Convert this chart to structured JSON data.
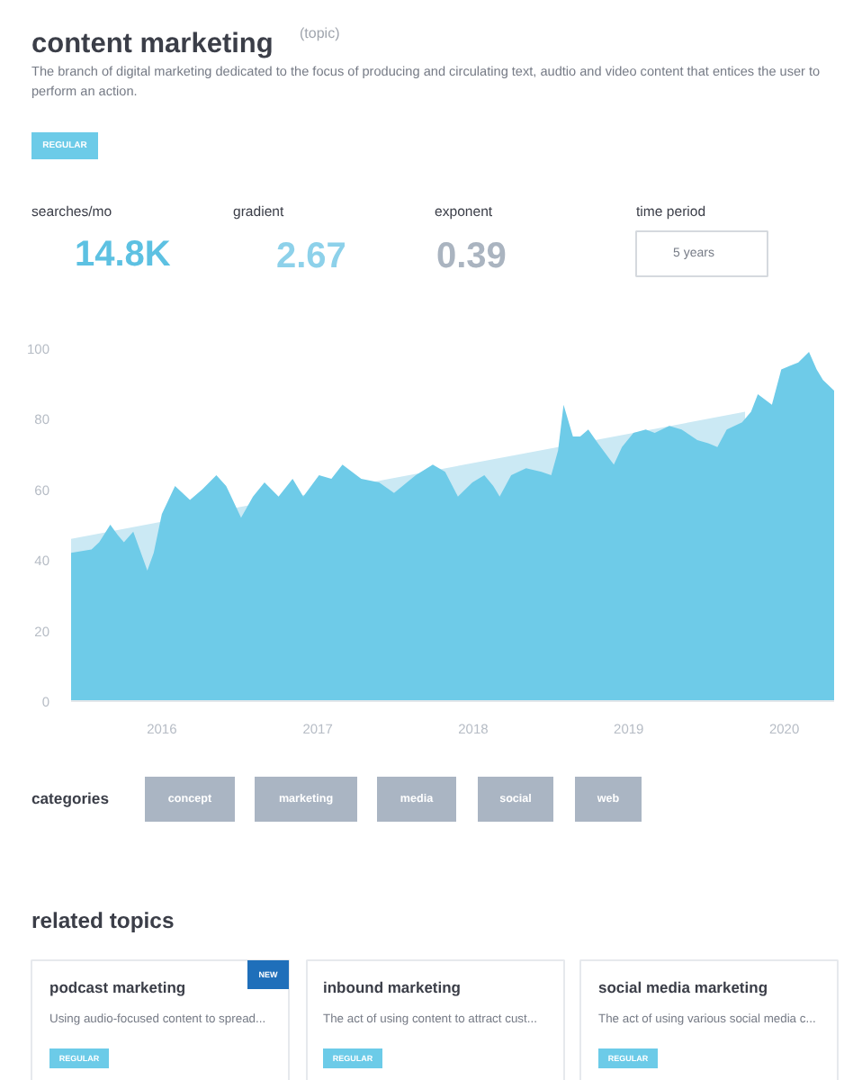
{
  "chart_data": {
    "type": "area",
    "title": "content marketing",
    "subtitle": "The branch of digital marketing dedicated to the focus of producing and circulating text, audtio and video content that entices the user to perform an action.",
    "annotations": [
      "(topic)",
      "REGULAR",
      "searches/mo",
      "14.8K",
      "gradient",
      "2.67",
      "exponent",
      "0.39",
      "time period",
      "5 years",
      "categories",
      "concept",
      "marketing",
      "media",
      "social",
      "web",
      "related topics",
      "podcast marketing",
      "NEW",
      "Using audio-focused content to spread...",
      "REGULAR",
      "inbound marketing",
      "The act of using content to attract cust...",
      "REGULAR",
      "social media marketing",
      "The act of using various social media c...",
      "REGULAR"
    ],
    "x": [
      "2015-06-02",
      "2015-07-20",
      "2015-08-07",
      "2015-09-02",
      "2015-09-20",
      "2015-10-04",
      "2015-10-26",
      "2015-11-28",
      "2015-12-13",
      "2016-01-01",
      "2016-02-01",
      "2016-03-07",
      "2016-04-05",
      "2016-05-08",
      "2016-05-31",
      "2016-07-05",
      "2016-08-02",
      "2016-08-29",
      "2016-10-01",
      "2016-11-03",
      "2016-11-28",
      "2017-01-04",
      "2017-02-02",
      "2017-02-28",
      "2017-04-13",
      "2017-05-25",
      "2017-06-29",
      "2017-08-19",
      "2017-09-28",
      "2017-10-27",
      "2017-11-26",
      "2017-12-30",
      "2018-01-27",
      "2018-02-17",
      "2018-03-04",
      "2018-03-31",
      "2018-05-05",
      "2018-06-10",
      "2018-07-03",
      "2018-07-19",
      "2018-08-01",
      "2018-08-23",
      "2018-09-09",
      "2018-09-28",
      "2018-10-21",
      "2018-11-27",
      "2018-12-16",
      "2019-01-12",
      "2019-02-10",
      "2019-03-03",
      "2019-04-06",
      "2019-05-05",
      "2019-06-11",
      "2019-07-08",
      "2019-07-28",
      "2019-08-19",
      "2019-09-24",
      "2019-10-15",
      "2019-10-31",
      "2019-12-03",
      "2019-12-25",
      "2020-01-14",
      "2020-02-03",
      "2020-02-28",
      "2020-03-17",
      "2020-04-01",
      "2020-04-27"
    ],
    "series": [
      {
        "type": "area",
        "x": [
          "2015-06-02",
          "2019-10-01"
        ],
        "values": [
          46,
          82
        ],
        "color": "#cbe9f4"
      },
      {
        "color": "#6ecbe8",
        "values": [
          42,
          43,
          45,
          50,
          47,
          45,
          48,
          37,
          42,
          53,
          61,
          57,
          60,
          64,
          61,
          52,
          58,
          62,
          58,
          63,
          58,
          64,
          63,
          67,
          63,
          62,
          59,
          64,
          67,
          65,
          58,
          62,
          64,
          61,
          58,
          64,
          66,
          65,
          64,
          71,
          84,
          75,
          75,
          77,
          73,
          67,
          72,
          76,
          77,
          76,
          78,
          77,
          74,
          73,
          72,
          77,
          79,
          82,
          87,
          84,
          94,
          95,
          96,
          99,
          94,
          91,
          88
        ]
      }
    ],
    "xlim": [
      "2015-06-02",
      "2020-04-27"
    ],
    "xticks": [
      "2016",
      "2017",
      "2018",
      "2019",
      "2020"
    ],
    "ylim": [
      0,
      100
    ],
    "yticks": [
      0,
      20,
      40,
      60,
      80,
      100
    ],
    "grid": false
  }
}
